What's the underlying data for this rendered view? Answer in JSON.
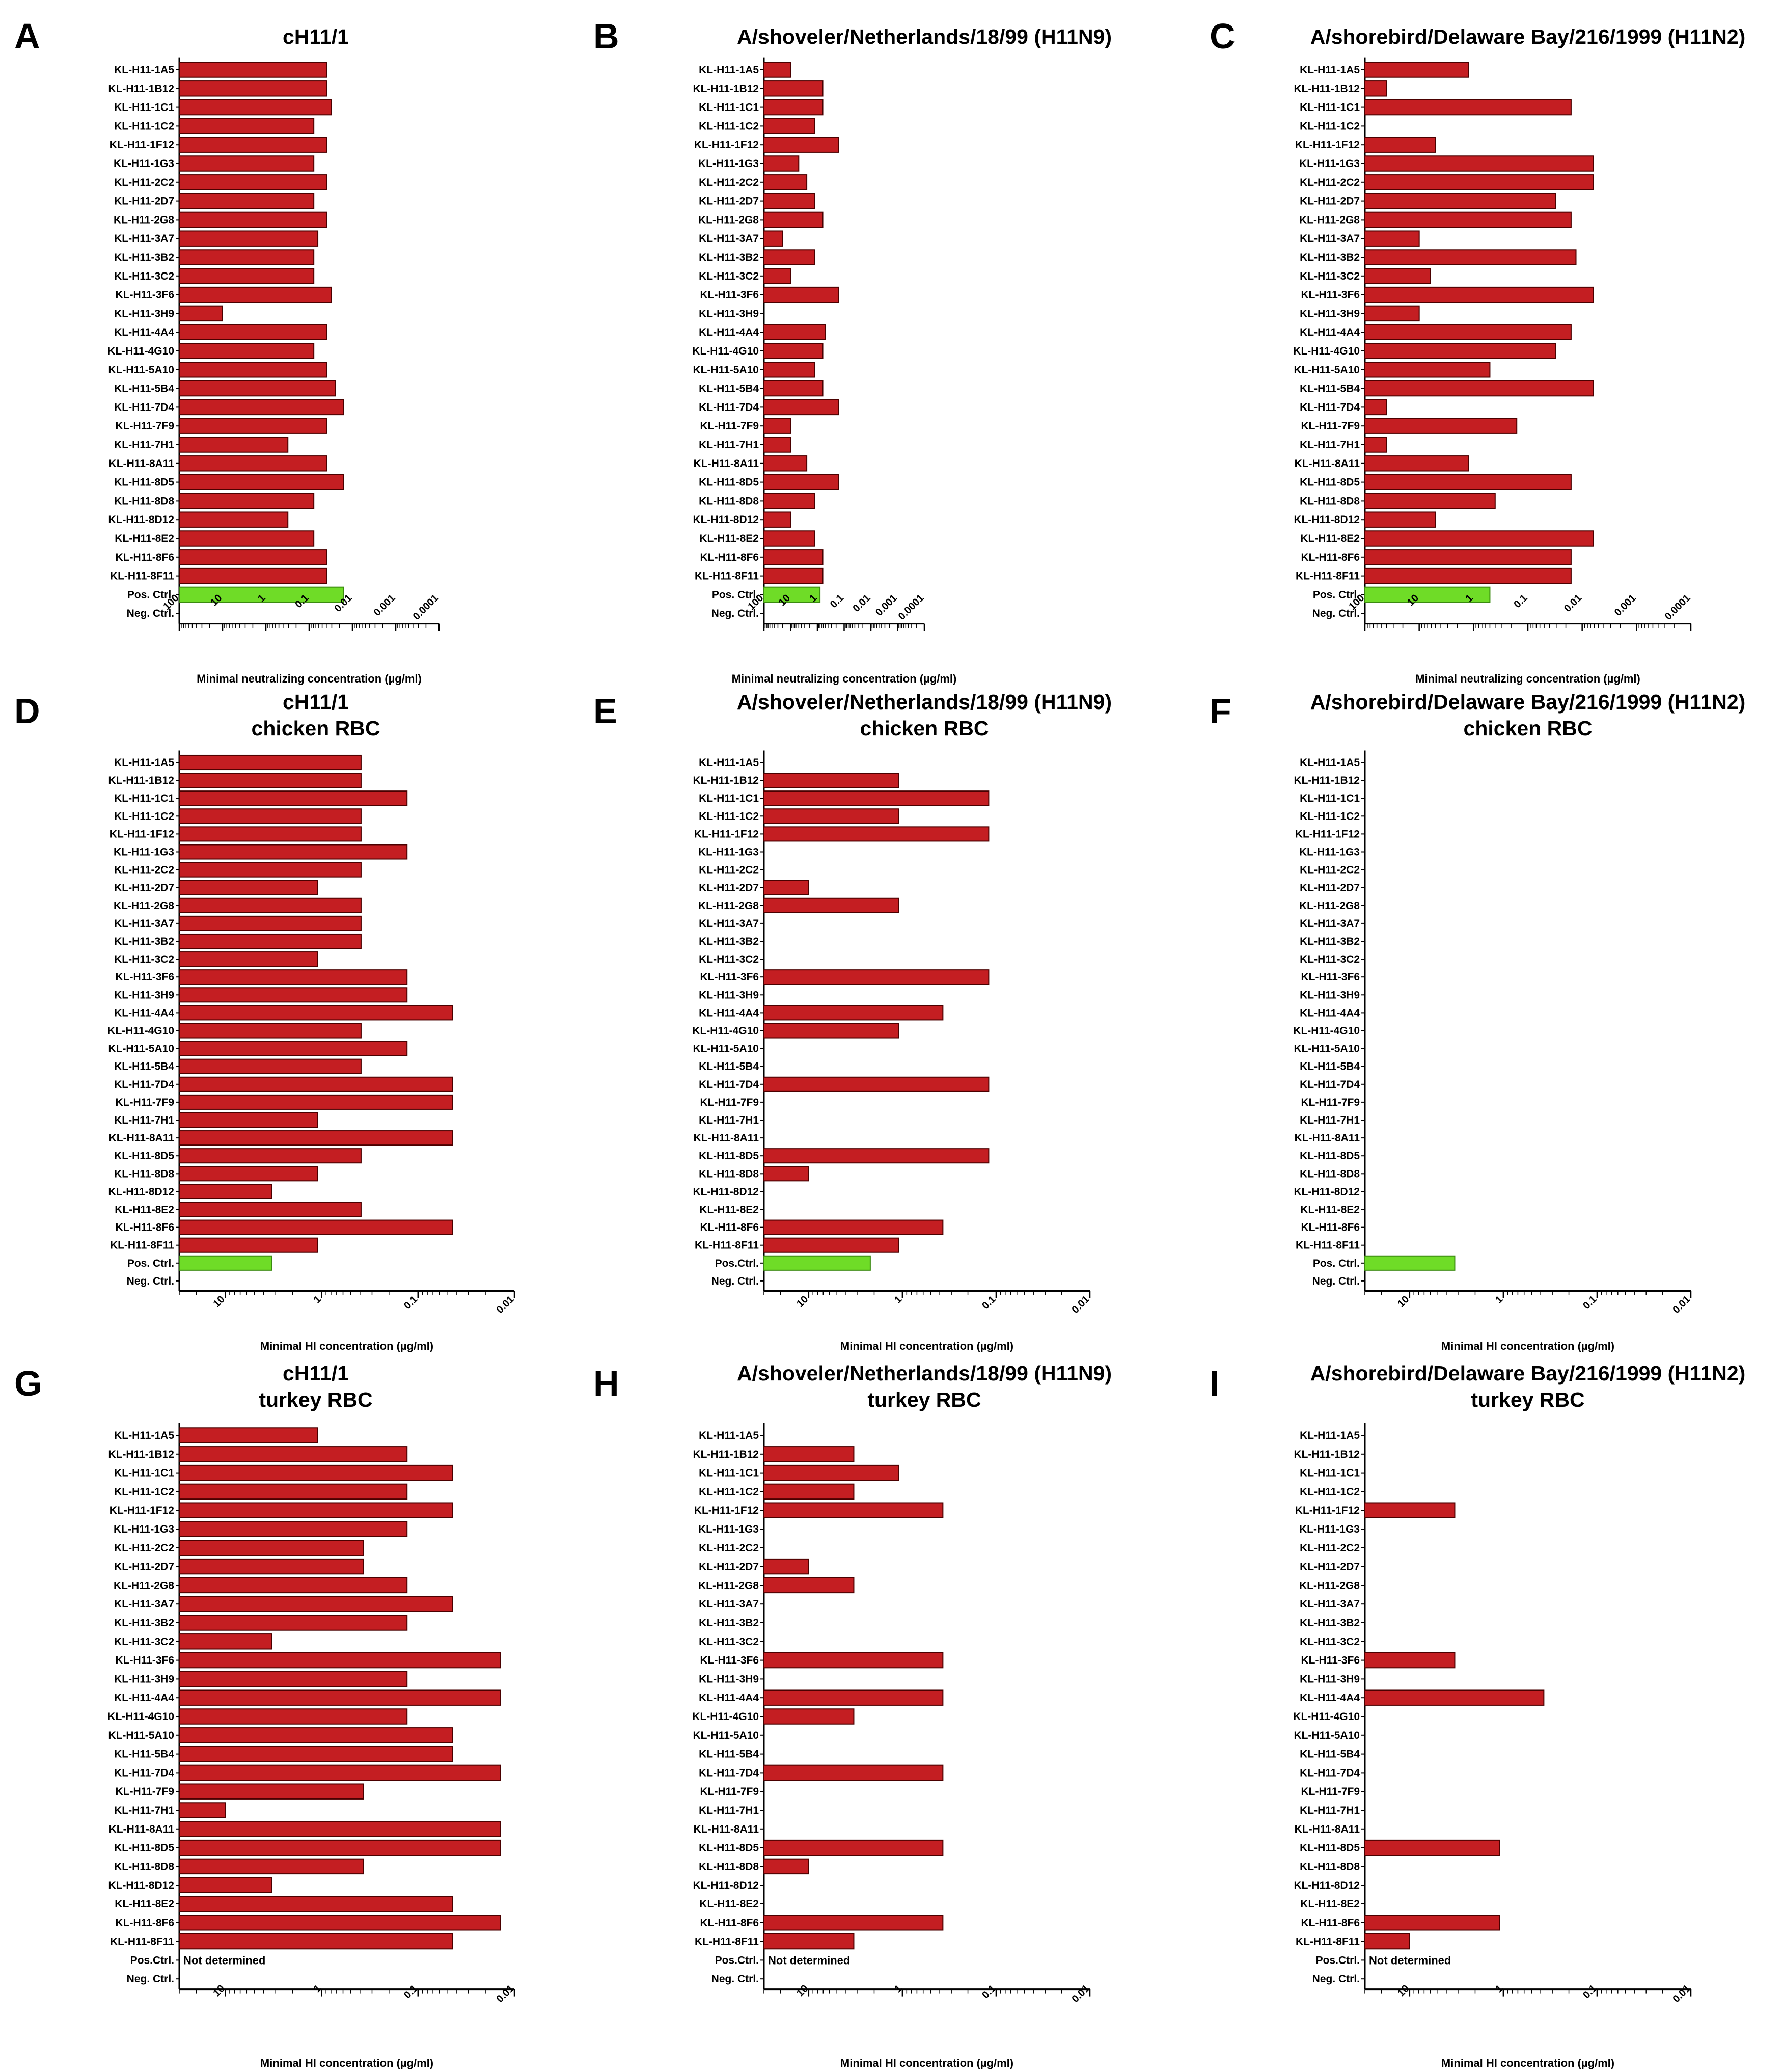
{
  "colors": {
    "bar": "#c41e22",
    "bar_stroke": "#4a0000",
    "control_bar": "#6fdc27",
    "control_stroke": "#3a8a10",
    "axis": "#000000"
  },
  "chart_data": [
    {
      "letter": "A",
      "type": "bar",
      "orientation": "horizontal",
      "scale": "log-reversed",
      "title": [
        "cH11/1"
      ],
      "xlabel": "Minimal neutralizing concentration (µg/ml)",
      "xlim": [
        100,
        0.0001
      ],
      "ticks": [
        "100",
        "10",
        "1",
        "0.1",
        "0.01",
        "0.001",
        "0.0001"
      ],
      "categories": [
        "KL-H11-1A5",
        "KL-H11-1B12",
        "KL-H11-1C1",
        "KL-H11-1C2",
        "KL-H11-1F12",
        "KL-H11-1G3",
        "KL-H11-2C2",
        "KL-H11-2D7",
        "KL-H11-2G8",
        "KL-H11-3A7",
        "KL-H11-3B2",
        "KL-H11-3C2",
        "KL-H11-3F6",
        "KL-H11-3H9",
        "KL-H11-4A4",
        "KL-H11-4G10",
        "KL-H11-5A10",
        "KL-H11-5B4",
        "KL-H11-7D4",
        "KL-H11-7F9",
        "KL-H11-7H1",
        "KL-H11-8A11",
        "KL-H11-8D5",
        "KL-H11-8D8",
        "KL-H11-8D12",
        "KL-H11-8E2",
        "KL-H11-8F6",
        "KL-H11-8F11",
        "Pos. Ctrl.",
        "Neg. Ctrl."
      ],
      "values": [
        0.039,
        0.039,
        0.031,
        0.078,
        0.039,
        0.078,
        0.039,
        0.078,
        0.039,
        0.063,
        0.078,
        0.078,
        0.031,
        10,
        0.039,
        0.078,
        0.039,
        0.025,
        0.016,
        0.039,
        0.31,
        0.039,
        0.016,
        0.078,
        0.31,
        0.078,
        0.039,
        0.039,
        0.016,
        null
      ],
      "control_index": 28,
      "note": ""
    },
    {
      "letter": "B",
      "type": "bar",
      "orientation": "horizontal",
      "scale": "log-reversed",
      "title": [
        "A/shoveler/Netherlands/18/99 (H11N9)"
      ],
      "xlabel": "Minimal neutralizing concentration (µg/ml)",
      "xlim": [
        100,
        0.0001
      ],
      "ticks": [
        "100",
        "10",
        "1",
        "0.1",
        "0.01",
        "0.001",
        "0.0001"
      ],
      "categories": [
        "KL-H11-1A5",
        "KL-H11-1B12",
        "KL-H11-1C1",
        "KL-H11-1C2",
        "KL-H11-1F12",
        "KL-H11-1G3",
        "KL-H11-2C2",
        "KL-H11-2D7",
        "KL-H11-2G8",
        "KL-H11-3A7",
        "KL-H11-3B2",
        "KL-H11-3C2",
        "KL-H11-3F6",
        "KL-H11-3H9",
        "KL-H11-4A4",
        "KL-H11-4G10",
        "KL-H11-5A10",
        "KL-H11-5B4",
        "KL-H11-7D4",
        "KL-H11-7F9",
        "KL-H11-7H1",
        "KL-H11-8A11",
        "KL-H11-8D5",
        "KL-H11-8D8",
        "KL-H11-8D12",
        "KL-H11-8E2",
        "KL-H11-8F6",
        "KL-H11-8F11",
        "Pos. Ctrl.",
        "Neg. Ctrl."
      ],
      "values": [
        10,
        0.63,
        0.63,
        1.25,
        0.16,
        5,
        2.5,
        1.25,
        0.63,
        20,
        1.25,
        10,
        0.16,
        null,
        0.5,
        0.63,
        1.25,
        0.63,
        0.16,
        10,
        10,
        2.5,
        0.16,
        1.25,
        10,
        1.25,
        0.63,
        0.63,
        0.8,
        null
      ],
      "control_index": 28,
      "note": ""
    },
    {
      "letter": "C",
      "type": "bar",
      "orientation": "horizontal",
      "scale": "log-reversed",
      "title": [
        "A/shorebird/Delaware Bay/216/1999 (H11N2)"
      ],
      "xlabel": "Minimal neutralizing concentration (µg/ml)",
      "xlim": [
        100,
        0.0001
      ],
      "ticks": [
        "100",
        "10",
        "1",
        "0.1",
        "0.01",
        "0.001",
        "0.0001"
      ],
      "categories": [
        "KL-H11-1A5",
        "KL-H11-1B12",
        "KL-H11-1C1",
        "KL-H11-1C2",
        "KL-H11-1F12",
        "KL-H11-1G3",
        "KL-H11-2C2",
        "KL-H11-2D7",
        "KL-H11-2G8",
        "KL-H11-3A7",
        "KL-H11-3B2",
        "KL-H11-3C2",
        "KL-H11-3F6",
        "KL-H11-3H9",
        "KL-H11-4A4",
        "KL-H11-4G10",
        "KL-H11-5A10",
        "KL-H11-5B4",
        "KL-H11-7D4",
        "KL-H11-7F9",
        "KL-H11-7H1",
        "KL-H11-8A11",
        "KL-H11-8D5",
        "KL-H11-8D8",
        "KL-H11-8D12",
        "KL-H11-8E2",
        "KL-H11-8F6",
        "KL-H11-8F11",
        "Pos. Ctrl.",
        "Neg. Ctrl."
      ],
      "values": [
        1.25,
        40,
        0.016,
        null,
        5,
        0.0063,
        0.0063,
        0.031,
        0.016,
        10,
        0.013,
        6.3,
        0.0063,
        10,
        0.016,
        0.031,
        0.5,
        0.0063,
        40,
        0.16,
        40,
        1.25,
        0.016,
        0.4,
        5,
        0.0063,
        0.016,
        0.016,
        0.5,
        null
      ],
      "control_index": 28,
      "note": ""
    },
    {
      "letter": "D",
      "type": "bar",
      "orientation": "horizontal",
      "scale": "log-reversed",
      "title": [
        "cH11/1",
        "chicken RBC"
      ],
      "xlabel": "Minimal HI concentration (µg/ml)",
      "xlim": [
        30,
        0.01
      ],
      "ticks": [
        "10",
        "1",
        "0.1",
        "0.01"
      ],
      "categories": [
        "KL-H11-1A5",
        "KL-H11-1B12",
        "KL-H11-1C1",
        "KL-H11-1C2",
        "KL-H11-1F12",
        "KL-H11-1G3",
        "KL-H11-2C2",
        "KL-H11-2D7",
        "KL-H11-2G8",
        "KL-H11-3A7",
        "KL-H11-3B2",
        "KL-H11-3C2",
        "KL-H11-3F6",
        "KL-H11-3H9",
        "KL-H11-4A4",
        "KL-H11-4G10",
        "KL-H11-5A10",
        "KL-H11-5B4",
        "KL-H11-7D4",
        "KL-H11-7F9",
        "KL-H11-7H1",
        "KL-H11-8A11",
        "KL-H11-8D5",
        "KL-H11-8D8",
        "KL-H11-8D12",
        "KL-H11-8E2",
        "KL-H11-8F6",
        "KL-H11-8F11",
        "Pos. Ctrl.",
        "Neg. Ctrl."
      ],
      "values": [
        0.39,
        0.39,
        0.13,
        0.39,
        0.39,
        0.13,
        0.39,
        1.1,
        0.39,
        0.39,
        0.39,
        1.1,
        0.13,
        0.13,
        0.044,
        0.39,
        0.13,
        0.39,
        0.044,
        0.044,
        1.1,
        0.044,
        0.39,
        1.1,
        3.3,
        0.39,
        0.044,
        1.1,
        3.3,
        null
      ],
      "control_index": 28,
      "note": ""
    },
    {
      "letter": "E",
      "type": "bar",
      "orientation": "horizontal",
      "scale": "log-reversed",
      "title": [
        "A/shoveler/Netherlands/18/99 (H11N9)",
        "chicken RBC"
      ],
      "xlabel": "Minimal HI concentration (µg/ml)",
      "xlim": [
        30,
        0.01
      ],
      "ticks": [
        "10",
        "1",
        "0.1",
        "0.01"
      ],
      "categories": [
        "KL-H11-1A5",
        "KL-H11-1B12",
        "KL-H11-1C1",
        "KL-H11-1C2",
        "KL-H11-1F12",
        "KL-H11-1G3",
        "KL-H11-2C2",
        "KL-H11-2D7",
        "KL-H11-2G8",
        "KL-H11-3A7",
        "KL-H11-3B2",
        "KL-H11-3C2",
        "KL-H11-3F6",
        "KL-H11-3H9",
        "KL-H11-4A4",
        "KL-H11-4G10",
        "KL-H11-5A10",
        "KL-H11-5B4",
        "KL-H11-7D4",
        "KL-H11-7F9",
        "KL-H11-7H1",
        "KL-H11-8A11",
        "KL-H11-8D5",
        "KL-H11-8D8",
        "KL-H11-8D12",
        "KL-H11-8E2",
        "KL-H11-8F6",
        "KL-H11-8F11",
        "Pos.Ctrl.",
        "Neg. Ctrl."
      ],
      "values": [
        null,
        1.1,
        0.12,
        1.1,
        0.12,
        null,
        null,
        10,
        1.1,
        null,
        null,
        null,
        0.12,
        null,
        0.37,
        1.1,
        null,
        null,
        0.12,
        null,
        null,
        null,
        0.12,
        10,
        null,
        null,
        0.37,
        1.1,
        2.2,
        null
      ],
      "control_index": 28,
      "note": ""
    },
    {
      "letter": "F",
      "type": "bar",
      "orientation": "horizontal",
      "scale": "log-reversed",
      "title": [
        "A/shorebird/Delaware Bay/216/1999 (H11N2)",
        "chicken RBC"
      ],
      "xlabel": "Minimal HI concentration (µg/ml)",
      "xlim": [
        30,
        0.01
      ],
      "ticks": [
        "10",
        "1",
        "0.1",
        "0.01"
      ],
      "categories": [
        "KL-H11-1A5",
        "KL-H11-1B12",
        "KL-H11-1C1",
        "KL-H11-1C2",
        "KL-H11-1F12",
        "KL-H11-1G3",
        "KL-H11-2C2",
        "KL-H11-2D7",
        "KL-H11-2G8",
        "KL-H11-3A7",
        "KL-H11-3B2",
        "KL-H11-3C2",
        "KL-H11-3F6",
        "KL-H11-3H9",
        "KL-H11-4A4",
        "KL-H11-4G10",
        "KL-H11-5A10",
        "KL-H11-5B4",
        "KL-H11-7D4",
        "KL-H11-7F9",
        "KL-H11-7H1",
        "KL-H11-8A11",
        "KL-H11-8D5",
        "KL-H11-8D8",
        "KL-H11-8D12",
        "KL-H11-8E2",
        "KL-H11-8F6",
        "KL-H11-8F11",
        "Pos. Ctrl.",
        "Neg. Ctrl."
      ],
      "values": [
        null,
        null,
        null,
        null,
        null,
        null,
        null,
        null,
        null,
        null,
        null,
        null,
        null,
        null,
        null,
        null,
        null,
        null,
        null,
        null,
        null,
        null,
        null,
        null,
        null,
        null,
        null,
        null,
        3.3,
        null
      ],
      "control_index": 28,
      "note": ""
    },
    {
      "letter": "G",
      "type": "bar",
      "orientation": "horizontal",
      "scale": "log-reversed",
      "title": [
        "cH11/1",
        "turkey RBC"
      ],
      "xlabel": "Minimal HI concentration (µg/ml)",
      "xlim": [
        30,
        0.01
      ],
      "ticks": [
        "10",
        "1",
        "0.1",
        "0.01"
      ],
      "categories": [
        "KL-H11-1A5",
        "KL-H11-1B12",
        "KL-H11-1C1",
        "KL-H11-1C2",
        "KL-H11-1F12",
        "KL-H11-1G3",
        "KL-H11-2C2",
        "KL-H11-2D7",
        "KL-H11-2G8",
        "KL-H11-3A7",
        "KL-H11-3B2",
        "KL-H11-3C2",
        "KL-H11-3F6",
        "KL-H11-3H9",
        "KL-H11-4A4",
        "KL-H11-4G10",
        "KL-H11-5A10",
        "KL-H11-5B4",
        "KL-H11-7D4",
        "KL-H11-7F9",
        "KL-H11-7H1",
        "KL-H11-8A11",
        "KL-H11-8D5",
        "KL-H11-8D8",
        "KL-H11-8D12",
        "KL-H11-8E2",
        "KL-H11-8F6",
        "KL-H11-8F11",
        "Pos.Ctrl.",
        "Neg. Ctrl."
      ],
      "values": [
        1.1,
        0.13,
        0.044,
        0.13,
        0.044,
        0.13,
        0.37,
        0.37,
        0.13,
        0.044,
        0.13,
        3.3,
        0.014,
        0.13,
        0.014,
        0.13,
        0.044,
        0.044,
        0.014,
        0.37,
        10,
        0.014,
        0.014,
        0.37,
        3.3,
        0.044,
        0.014,
        0.044,
        null,
        null
      ],
      "control_index": -1,
      "note": "Not determined"
    },
    {
      "letter": "H",
      "type": "bar",
      "orientation": "horizontal",
      "scale": "log-reversed",
      "title": [
        "A/shoveler/Netherlands/18/99 (H11N9)",
        "turkey RBC"
      ],
      "xlabel": "Minimal HI concentration (µg/ml)",
      "xlim": [
        30,
        0.01
      ],
      "ticks": [
        "10",
        "1",
        "0.1",
        "0.01"
      ],
      "categories": [
        "KL-H11-1A5",
        "KL-H11-1B12",
        "KL-H11-1C1",
        "KL-H11-1C2",
        "KL-H11-1F12",
        "KL-H11-1G3",
        "KL-H11-2C2",
        "KL-H11-2D7",
        "KL-H11-2G8",
        "KL-H11-3A7",
        "KL-H11-3B2",
        "KL-H11-3C2",
        "KL-H11-3F6",
        "KL-H11-3H9",
        "KL-H11-4A4",
        "KL-H11-4G10",
        "KL-H11-5A10",
        "KL-H11-5B4",
        "KL-H11-7D4",
        "KL-H11-7F9",
        "KL-H11-7H1",
        "KL-H11-8A11",
        "KL-H11-8D5",
        "KL-H11-8D8",
        "KL-H11-8D12",
        "KL-H11-8E2",
        "KL-H11-8F6",
        "KL-H11-8F11",
        "Pos.Ctrl.",
        "Neg. Ctrl."
      ],
      "values": [
        null,
        3.3,
        1.1,
        3.3,
        0.37,
        null,
        null,
        10,
        3.3,
        null,
        null,
        null,
        0.37,
        null,
        0.37,
        3.3,
        null,
        null,
        0.37,
        null,
        null,
        null,
        0.37,
        10,
        null,
        null,
        0.37,
        3.3,
        null,
        null
      ],
      "control_index": -1,
      "note": "Not determined"
    },
    {
      "letter": "I",
      "type": "bar",
      "orientation": "horizontal",
      "scale": "log-reversed",
      "title": [
        "A/shorebird/Delaware Bay/216/1999 (H11N2)",
        "turkey RBC"
      ],
      "xlabel": "Minimal HI concentration (µg/ml)",
      "xlim": [
        30,
        0.01
      ],
      "ticks": [
        "10",
        "1",
        "0.1",
        "0.01"
      ],
      "categories": [
        "KL-H11-1A5",
        "KL-H11-1B12",
        "KL-H11-1C1",
        "KL-H11-1C2",
        "KL-H11-1F12",
        "KL-H11-1G3",
        "KL-H11-2C2",
        "KL-H11-2D7",
        "KL-H11-2G8",
        "KL-H11-3A7",
        "KL-H11-3B2",
        "KL-H11-3C2",
        "KL-H11-3F6",
        "KL-H11-3H9",
        "KL-H11-4A4",
        "KL-H11-4G10",
        "KL-H11-5A10",
        "KL-H11-5B4",
        "KL-H11-7D4",
        "KL-H11-7F9",
        "KL-H11-7H1",
        "KL-H11-8A11",
        "KL-H11-8D5",
        "KL-H11-8D8",
        "KL-H11-8D12",
        "KL-H11-8E2",
        "KL-H11-8F6",
        "KL-H11-8F11",
        "Pos.Ctrl.",
        "Neg. Ctrl."
      ],
      "values": [
        null,
        null,
        null,
        null,
        3.3,
        null,
        null,
        null,
        null,
        null,
        null,
        null,
        3.3,
        null,
        0.37,
        null,
        null,
        null,
        null,
        null,
        null,
        null,
        1.1,
        null,
        null,
        null,
        1.1,
        10,
        null,
        null
      ],
      "control_index": -1,
      "note": "Not determined"
    }
  ]
}
